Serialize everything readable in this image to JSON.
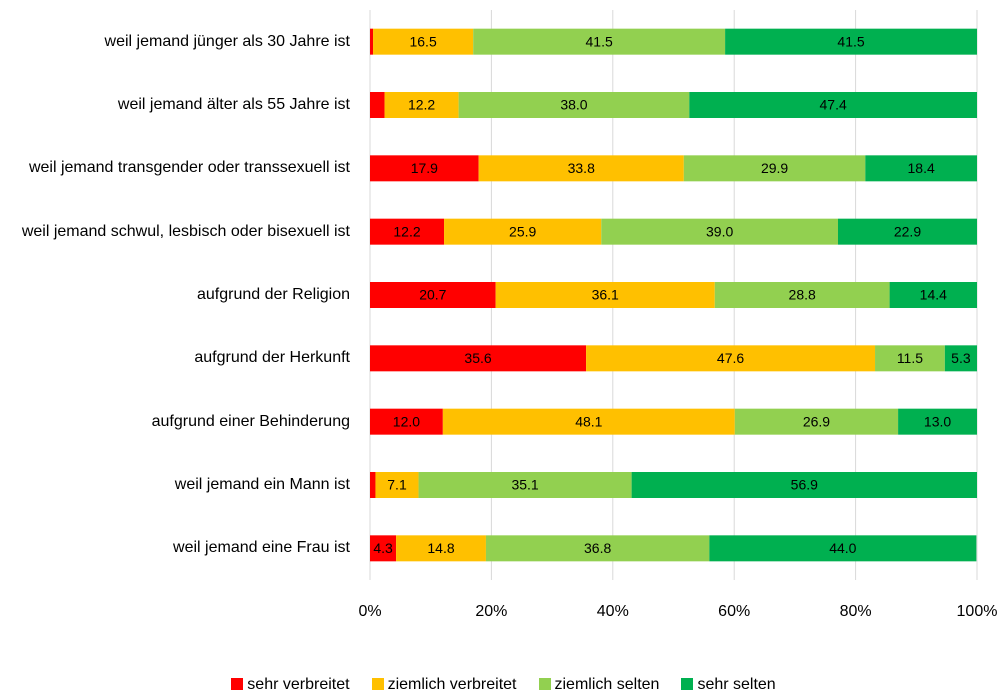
{
  "chart_data": {
    "type": "stacked-barh",
    "categories": [
      "weil jemand jünger als 30 Jahre ist",
      "weil jemand älter als 55 Jahre ist",
      "weil jemand transgender oder transsexuell ist",
      "weil jemand schwul, lesbisch oder bisexuell ist",
      "aufgrund der Religion",
      "aufgrund der Herkunft",
      "aufgrund einer Behinderung",
      "weil jemand ein Mann ist",
      "weil jemand eine Frau ist"
    ],
    "series": [
      {
        "name": "sehr verbreitet",
        "color": "#ff0000",
        "values": [
          0.5,
          2.4,
          17.9,
          12.2,
          20.7,
          35.6,
          12.0,
          0.9,
          4.3
        ],
        "value_labels": [
          null,
          null,
          "17.9",
          "12.2",
          "20.7",
          "35.6",
          "12.0",
          null,
          "4.3"
        ]
      },
      {
        "name": "ziemlich verbreitet",
        "color": "#ffc000",
        "values": [
          16.5,
          12.2,
          33.8,
          25.9,
          36.1,
          47.6,
          48.1,
          7.1,
          14.8
        ],
        "value_labels": [
          "16.5",
          "12.2",
          "33.8",
          "25.9",
          "36.1",
          "47.6",
          "48.1",
          "7.1",
          "14.8"
        ]
      },
      {
        "name": "ziemlich selten",
        "color": "#92d050",
        "values": [
          41.5,
          38.0,
          29.9,
          39.0,
          28.8,
          11.5,
          26.9,
          35.1,
          36.8
        ],
        "value_labels": [
          "41.5",
          "38.0",
          "29.9",
          "39.0",
          "28.8",
          "11.5",
          "26.9",
          "35.1",
          "36.8"
        ]
      },
      {
        "name": "sehr selten",
        "color": "#00b050",
        "values": [
          41.5,
          47.4,
          18.4,
          22.9,
          14.4,
          5.3,
          13.0,
          56.9,
          44.0
        ],
        "value_labels": [
          "41.5",
          "47.4",
          "18.4",
          "22.9",
          "14.4",
          "5.3",
          "13.0",
          "56.9",
          "44.0"
        ]
      }
    ],
    "xlim": [
      0,
      100
    ],
    "xticks": [
      {
        "value": 0,
        "label": "0%"
      },
      {
        "value": 20,
        "label": "20%"
      },
      {
        "value": 40,
        "label": "40%"
      },
      {
        "value": 60,
        "label": "60%"
      },
      {
        "value": 80,
        "label": "80%"
      },
      {
        "value": 100,
        "label": "100%"
      }
    ],
    "grid": true
  }
}
